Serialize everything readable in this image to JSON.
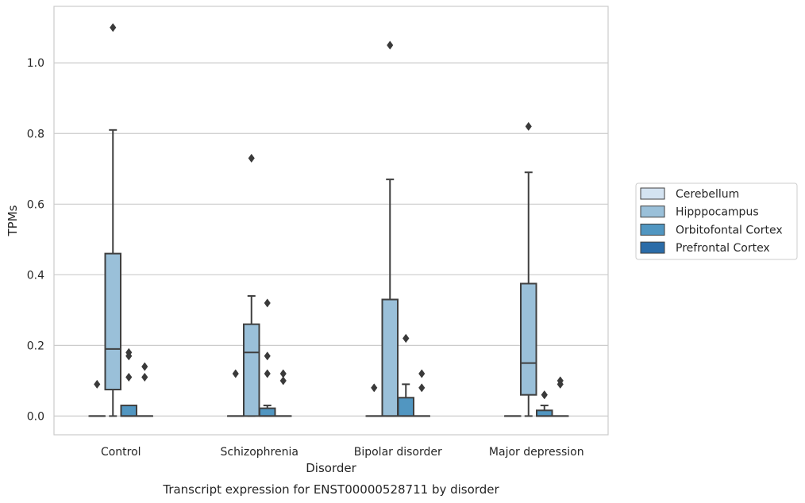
{
  "caption": "Transcript expression for ENST00000528711 by disorder",
  "chart_data": {
    "type": "box",
    "xlabel": "Disorder",
    "ylabel": "TPMs",
    "ylim": [
      -0.053,
      1.16
    ],
    "yticks": [
      0.0,
      0.2,
      0.4,
      0.6,
      0.8,
      1.0
    ],
    "ytick_labels": [
      "0.0",
      "0.2",
      "0.4",
      "0.6",
      "0.8",
      "1.0"
    ],
    "grid": true,
    "legend_position": "right",
    "categories": [
      "Control",
      "Schizophrenia",
      "Bipolar disorder",
      "Major depression"
    ],
    "series": [
      {
        "name": "Cerebellum",
        "color": "#d4e3f1",
        "boxes": [
          {
            "q1": 0,
            "median": 0,
            "q3": 0,
            "whisker_low": 0,
            "whisker_high": 0,
            "outliers": [
              0.09
            ]
          },
          {
            "q1": 0,
            "median": 0,
            "q3": 0,
            "whisker_low": 0,
            "whisker_high": 0,
            "outliers": [
              0.12
            ]
          },
          {
            "q1": 0,
            "median": 0,
            "q3": 0,
            "whisker_low": 0,
            "whisker_high": 0,
            "outliers": [
              0.08
            ]
          },
          {
            "q1": 0,
            "median": 0,
            "q3": 0,
            "whisker_low": 0,
            "whisker_high": 0,
            "outliers": []
          }
        ]
      },
      {
        "name": "Hipppocampus",
        "color": "#9ac0d9",
        "boxes": [
          {
            "q1": 0.075,
            "median": 0.19,
            "q3": 0.46,
            "whisker_low": 0,
            "whisker_high": 0.81,
            "outliers": [
              1.1
            ]
          },
          {
            "q1": 0,
            "median": 0.18,
            "q3": 0.26,
            "whisker_low": 0,
            "whisker_high": 0.34,
            "outliers": [
              0.73
            ]
          },
          {
            "q1": 0,
            "median": 0,
            "q3": 0.33,
            "whisker_low": 0,
            "whisker_high": 0.67,
            "outliers": [
              1.05
            ]
          },
          {
            "q1": 0.06,
            "median": 0.15,
            "q3": 0.375,
            "whisker_low": 0,
            "whisker_high": 0.69,
            "outliers": [
              0.82
            ]
          }
        ]
      },
      {
        "name": "Orbitofontal Cortex",
        "color": "#5196c1",
        "boxes": [
          {
            "q1": 0,
            "median": 0,
            "q3": 0.03,
            "whisker_low": 0,
            "whisker_high": 0.03,
            "outliers": [
              0.11,
              0.17,
              0.18
            ]
          },
          {
            "q1": 0,
            "median": 0,
            "q3": 0.022,
            "whisker_low": 0,
            "whisker_high": 0.03,
            "outliers": [
              0.12,
              0.17,
              0.32
            ]
          },
          {
            "q1": 0,
            "median": 0,
            "q3": 0.052,
            "whisker_low": 0,
            "whisker_high": 0.09,
            "outliers": [
              0.22,
              0.22
            ]
          },
          {
            "q1": 0,
            "median": 0,
            "q3": 0.016,
            "whisker_low": 0,
            "whisker_high": 0.03,
            "outliers": [
              0.06,
              0.06
            ]
          }
        ]
      },
      {
        "name": "Prefrontal Cortex",
        "color": "#2b6ca8",
        "boxes": [
          {
            "q1": 0,
            "median": 0,
            "q3": 0,
            "whisker_low": 0,
            "whisker_high": 0,
            "outliers": [
              0.11,
              0.14
            ]
          },
          {
            "q1": 0,
            "median": 0,
            "q3": 0,
            "whisker_low": 0,
            "whisker_high": 0,
            "outliers": [
              0.1,
              0.12
            ]
          },
          {
            "q1": 0,
            "median": 0,
            "q3": 0,
            "whisker_low": 0,
            "whisker_high": 0,
            "outliers": [
              0.08,
              0.12
            ]
          },
          {
            "q1": 0,
            "median": 0,
            "q3": 0,
            "whisker_low": 0,
            "whisker_high": 0,
            "outliers": [
              0.09,
              0.1
            ]
          }
        ]
      }
    ]
  }
}
